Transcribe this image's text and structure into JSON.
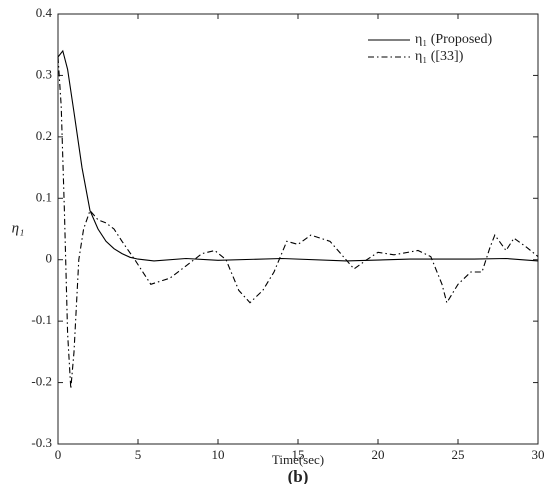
{
  "chart_data": {
    "type": "line",
    "xlabel": "Time(sec)",
    "ylabel": "η₁",
    "caption": "(b)",
    "xlim": [
      0,
      30
    ],
    "xticks": [
      0,
      5,
      10,
      15,
      20,
      25,
      30
    ],
    "ylim": [
      -0.3,
      0.4
    ],
    "yticks": [
      -0.3,
      -0.2,
      -0.1,
      0,
      0.1,
      0.2,
      0.3,
      0.4
    ],
    "legend": "upper right",
    "series": [
      {
        "name": "η₁ (Proposed)",
        "color": "#000000",
        "linestyle": "solid",
        "x": [
          0,
          0.3,
          0.6,
          1,
          1.5,
          2,
          2.5,
          3,
          3.5,
          4,
          4.5,
          5,
          6,
          8,
          10,
          14,
          18,
          22,
          26,
          28,
          30
        ],
        "values": [
          0.33,
          0.34,
          0.31,
          0.24,
          0.15,
          0.08,
          0.05,
          0.03,
          0.018,
          0.01,
          0.004,
          0.001,
          -0.002,
          0.002,
          -0.001,
          0.002,
          -0.002,
          0.001,
          0.001,
          0.002,
          -0.002
        ]
      },
      {
        "name": "η₁ ([33])",
        "color": "#000000",
        "linestyle": "dashdot",
        "x": [
          0,
          0.2,
          0.4,
          0.6,
          0.8,
          1,
          1.3,
          1.6,
          2,
          2.5,
          3,
          3.5,
          4,
          4.8,
          5.8,
          7,
          8,
          9,
          9.8,
          10.5,
          11.3,
          12,
          12.8,
          13.5,
          14.3,
          15,
          15.8,
          17,
          18,
          18.5,
          19.3,
          20,
          21,
          22.5,
          23.3,
          24,
          24.3,
          25,
          25.8,
          26.5,
          27,
          27.3,
          28,
          28.5,
          29.3,
          30
        ],
        "values": [
          0.33,
          0.25,
          0.08,
          -0.12,
          -0.21,
          -0.15,
          0,
          0.05,
          0.08,
          0.065,
          0.06,
          0.05,
          0.03,
          0,
          -0.04,
          -0.03,
          -0.01,
          0.01,
          0.015,
          0,
          -0.05,
          -0.07,
          -0.05,
          -0.02,
          0.03,
          0.025,
          0.04,
          0.03,
          0,
          -0.015,
          0,
          0.012,
          0.008,
          0.015,
          0.005,
          -0.04,
          -0.07,
          -0.04,
          -0.02,
          -0.02,
          0.02,
          0.04,
          0.015,
          0.035,
          0.02,
          0.005
        ]
      }
    ]
  }
}
